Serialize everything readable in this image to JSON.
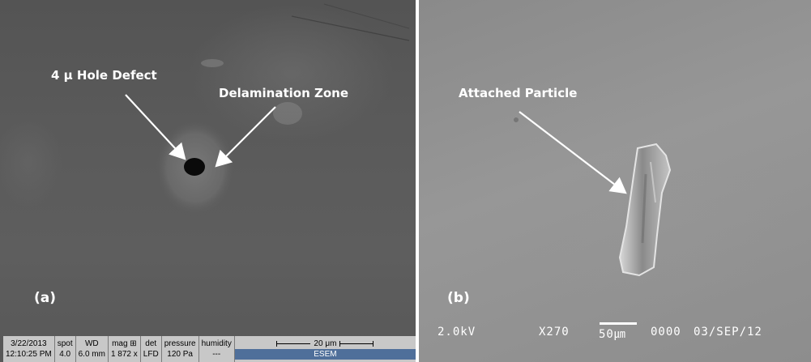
{
  "panel_a": {
    "label": "(a)",
    "annotations": {
      "hole": "4 μ Hole Defect",
      "delamination": "Delamination Zone"
    },
    "databar": {
      "date": "3/22/2013",
      "time": "12:10:25 PM",
      "spot_label": "spot",
      "spot_value": "4.0",
      "wd_label": "WD",
      "wd_value": "6.0 mm",
      "mag_label": "mag ⊞",
      "mag_value": "1 872 x",
      "det_label": "det",
      "det_value": "LFD",
      "pressure_label": "pressure",
      "pressure_value": "120 Pa",
      "humidity_label": "humidity",
      "humidity_value": "---",
      "scale": "20 μm",
      "mode": "ESEM"
    }
  },
  "panel_b": {
    "label": "(b)",
    "annotations": {
      "particle": "Attached Particle"
    },
    "infobar": {
      "voltage": "2.0kV",
      "magnification": "X270",
      "scale": "50㎛",
      "frame": "0000",
      "date": "03/SEP/12"
    }
  }
}
